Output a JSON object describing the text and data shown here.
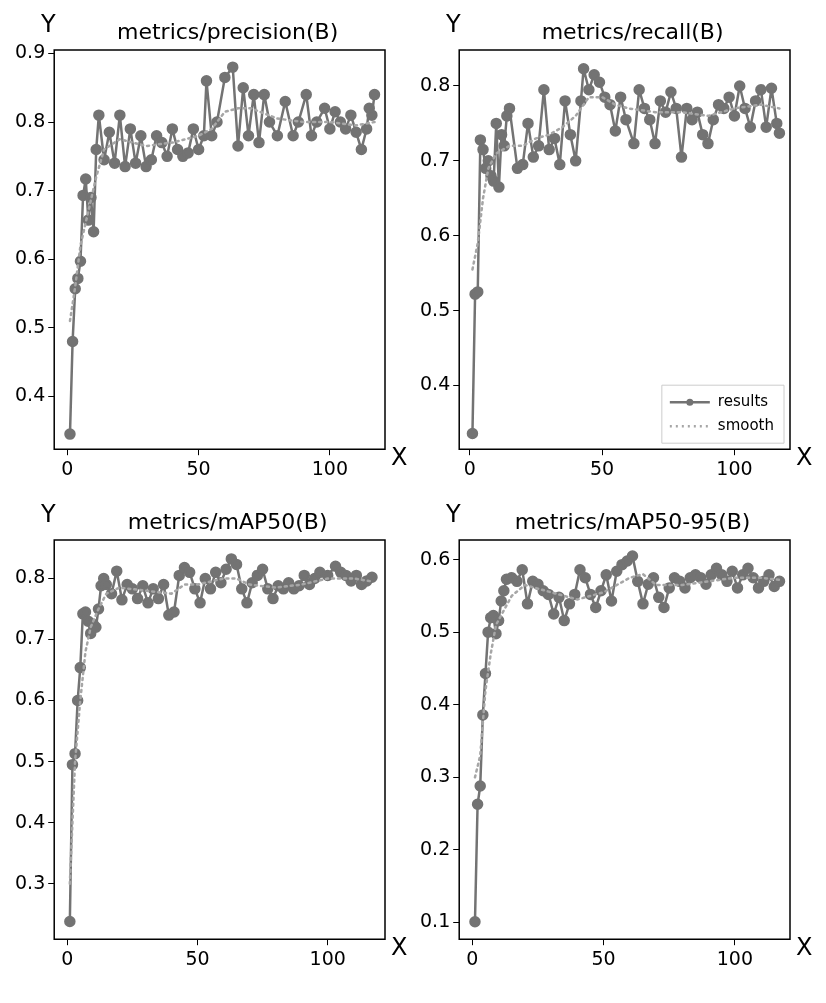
{
  "chart_data": [
    {
      "type": "line",
      "title": "metrics/precision(B)",
      "xlabel": "X",
      "ylabel": "Y",
      "xlim": [
        -5,
        121
      ],
      "ylim": [
        0.323,
        0.905
      ],
      "xticks": [
        0,
        50,
        100
      ],
      "yticks": [
        0.4,
        0.5,
        0.6,
        0.7,
        0.8,
        0.9
      ],
      "grid": false,
      "legend": false,
      "series": [
        {
          "color": "#737373",
          "marker": "circle",
          "line_style": "solid",
          "x": [
            1,
            2,
            3,
            4,
            5,
            6,
            7,
            8,
            9,
            10,
            11,
            12,
            14,
            16,
            18,
            20,
            22,
            24,
            26,
            28,
            30,
            32,
            34,
            36,
            38,
            40,
            42,
            44,
            46,
            48,
            50,
            52,
            53,
            55,
            57,
            60,
            63,
            65,
            67,
            69,
            71,
            73,
            75,
            77,
            80,
            83,
            86,
            88,
            91,
            93,
            95,
            98,
            100,
            102,
            104,
            106,
            108,
            110,
            112,
            114,
            115,
            116,
            117
          ],
          "values": [
            0.345,
            0.48,
            0.557,
            0.572,
            0.597,
            0.693,
            0.717,
            0.657,
            0.69,
            0.64,
            0.76,
            0.81,
            0.745,
            0.785,
            0.74,
            0.81,
            0.735,
            0.79,
            0.74,
            0.78,
            0.735,
            0.745,
            0.78,
            0.77,
            0.75,
            0.79,
            0.76,
            0.75,
            0.755,
            0.79,
            0.76,
            0.78,
            0.86,
            0.78,
            0.8,
            0.865,
            0.88,
            0.765,
            0.85,
            0.78,
            0.84,
            0.77,
            0.84,
            0.8,
            0.78,
            0.83,
            0.78,
            0.8,
            0.84,
            0.78,
            0.8,
            0.82,
            0.79,
            0.815,
            0.8,
            0.79,
            0.81,
            0.785,
            0.76,
            0.79,
            0.82,
            0.81,
            0.84
          ]
        },
        {
          "color": "#a6a6a6",
          "marker": "none",
          "line_style": "dotted",
          "x": [
            1,
            3,
            5,
            8,
            11,
            14,
            20,
            30,
            40,
            50,
            55,
            60,
            65,
            70,
            80,
            90,
            100,
            110,
            117
          ],
          "values": [
            0.51,
            0.56,
            0.62,
            0.67,
            0.72,
            0.76,
            0.775,
            0.765,
            0.77,
            0.78,
            0.79,
            0.815,
            0.82,
            0.82,
            0.805,
            0.8,
            0.8,
            0.795,
            0.8
          ]
        }
      ]
    },
    {
      "type": "line",
      "title": "metrics/recall(B)",
      "xlabel": "X",
      "ylabel": "Y",
      "xlim": [
        -4,
        121
      ],
      "ylim": [
        0.315,
        0.848
      ],
      "xticks": [
        0,
        50,
        100
      ],
      "yticks": [
        0.4,
        0.5,
        0.6,
        0.7,
        0.8
      ],
      "grid": false,
      "legend": "bottom right",
      "series": [
        {
          "name": "results",
          "color": "#737373",
          "marker": "circle",
          "line_style": "solid",
          "x": [
            1,
            2,
            3,
            4,
            5,
            6,
            7,
            8,
            9,
            10,
            11,
            12,
            13,
            14,
            15,
            18,
            20,
            22,
            24,
            26,
            28,
            30,
            32,
            34,
            36,
            38,
            40,
            42,
            43,
            45,
            47,
            49,
            51,
            53,
            55,
            57,
            59,
            62,
            64,
            66,
            68,
            70,
            72,
            74,
            76,
            78,
            80,
            82,
            84,
            86,
            88,
            90,
            92,
            94,
            96,
            98,
            100,
            102,
            104,
            106,
            108,
            110,
            112,
            114,
            116,
            117
          ],
          "values": [
            0.336,
            0.522,
            0.525,
            0.728,
            0.715,
            0.69,
            0.7,
            0.68,
            0.673,
            0.75,
            0.665,
            0.735,
            0.72,
            0.76,
            0.77,
            0.69,
            0.695,
            0.75,
            0.705,
            0.72,
            0.795,
            0.715,
            0.73,
            0.695,
            0.78,
            0.735,
            0.7,
            0.78,
            0.823,
            0.795,
            0.815,
            0.805,
            0.785,
            0.775,
            0.74,
            0.785,
            0.755,
            0.723,
            0.795,
            0.77,
            0.755,
            0.723,
            0.78,
            0.765,
            0.792,
            0.77,
            0.705,
            0.77,
            0.755,
            0.765,
            0.735,
            0.723,
            0.755,
            0.775,
            0.77,
            0.785,
            0.76,
            0.8,
            0.77,
            0.745,
            0.78,
            0.795,
            0.745,
            0.797,
            0.75,
            0.737
          ]
        },
        {
          "name": "smooth",
          "color": "#a6a6a6",
          "marker": "none",
          "line_style": "dotted",
          "x": [
            1,
            3,
            5,
            7,
            10,
            15,
            20,
            25,
            30,
            35,
            40,
            45,
            50,
            55,
            60,
            70,
            80,
            90,
            100,
            110,
            117
          ],
          "values": [
            0.555,
            0.59,
            0.65,
            0.69,
            0.71,
            0.72,
            0.72,
            0.73,
            0.735,
            0.745,
            0.76,
            0.785,
            0.785,
            0.775,
            0.77,
            0.765,
            0.765,
            0.76,
            0.77,
            0.775,
            0.77
          ]
        }
      ]
    },
    {
      "type": "line",
      "title": "metrics/mAP50(B)",
      "xlabel": "X",
      "ylabel": "Y",
      "xlim": [
        -5,
        122
      ],
      "ylim": [
        0.209,
        0.863
      ],
      "xticks": [
        0,
        50,
        100
      ],
      "yticks": [
        0.3,
        0.4,
        0.5,
        0.6,
        0.7,
        0.8
      ],
      "grid": false,
      "legend": false,
      "series": [
        {
          "color": "#737373",
          "marker": "circle",
          "line_style": "solid",
          "x": [
            1,
            2,
            3,
            4,
            5,
            6,
            7,
            8,
            9,
            10,
            11,
            12,
            13,
            14,
            15,
            17,
            19,
            21,
            23,
            25,
            27,
            29,
            31,
            33,
            35,
            37,
            39,
            41,
            43,
            45,
            47,
            49,
            51,
            53,
            55,
            57,
            59,
            61,
            63,
            65,
            67,
            69,
            71,
            73,
            75,
            77,
            79,
            81,
            83,
            85,
            87,
            89,
            91,
            93,
            95,
            97,
            100,
            103,
            105,
            107,
            109,
            111,
            113,
            115,
            117
          ],
          "values": [
            0.238,
            0.495,
            0.513,
            0.6,
            0.654,
            0.742,
            0.745,
            0.73,
            0.71,
            0.725,
            0.72,
            0.75,
            0.788,
            0.8,
            0.79,
            0.775,
            0.812,
            0.765,
            0.79,
            0.783,
            0.767,
            0.788,
            0.76,
            0.783,
            0.767,
            0.79,
            0.74,
            0.745,
            0.805,
            0.818,
            0.81,
            0.783,
            0.76,
            0.8,
            0.783,
            0.81,
            0.793,
            0.815,
            0.832,
            0.823,
            0.783,
            0.76,
            0.793,
            0.805,
            0.815,
            0.783,
            0.767,
            0.788,
            0.783,
            0.793,
            0.783,
            0.788,
            0.805,
            0.79,
            0.8,
            0.81,
            0.805,
            0.82,
            0.81,
            0.805,
            0.796,
            0.805,
            0.79,
            0.796,
            0.802
          ]
        },
        {
          "color": "#a6a6a6",
          "marker": "none",
          "line_style": "dotted",
          "x": [
            1,
            3,
            5,
            7,
            9,
            12,
            15,
            20,
            30,
            40,
            45,
            50,
            60,
            65,
            70,
            80,
            90,
            100,
            110,
            117
          ],
          "values": [
            0.3,
            0.5,
            0.6,
            0.68,
            0.72,
            0.75,
            0.775,
            0.785,
            0.78,
            0.775,
            0.79,
            0.79,
            0.8,
            0.8,
            0.79,
            0.785,
            0.79,
            0.8,
            0.8,
            0.795
          ]
        }
      ]
    },
    {
      "type": "line",
      "title": "metrics/mAP50-95(B)",
      "xlabel": "X",
      "ylabel": "Y",
      "xlim": [
        -5,
        121
      ],
      "ylim": [
        0.077,
        0.627
      ],
      "xticks": [
        0,
        50,
        100
      ],
      "yticks": [
        0.1,
        0.2,
        0.3,
        0.4,
        0.5,
        0.6
      ],
      "grid": false,
      "legend": false,
      "series": [
        {
          "color": "#737373",
          "marker": "circle",
          "line_style": "solid",
          "x": [
            1,
            2,
            3,
            4,
            5,
            6,
            7,
            8,
            9,
            10,
            11,
            12,
            13,
            15,
            17,
            19,
            21,
            23,
            25,
            27,
            29,
            31,
            33,
            35,
            37,
            39,
            41,
            43,
            45,
            47,
            49,
            51,
            53,
            55,
            57,
            59,
            61,
            63,
            65,
            67,
            69,
            71,
            73,
            75,
            77,
            79,
            81,
            83,
            85,
            87,
            89,
            91,
            93,
            95,
            97,
            99,
            101,
            103,
            105,
            107,
            109,
            111,
            113,
            115,
            117
          ],
          "values": [
            0.101,
            0.263,
            0.288,
            0.386,
            0.443,
            0.5,
            0.52,
            0.523,
            0.498,
            0.516,
            0.543,
            0.557,
            0.573,
            0.575,
            0.57,
            0.586,
            0.539,
            0.57,
            0.566,
            0.557,
            0.552,
            0.525,
            0.548,
            0.516,
            0.539,
            0.552,
            0.586,
            0.575,
            0.552,
            0.534,
            0.557,
            0.579,
            0.543,
            0.584,
            0.593,
            0.598,
            0.605,
            0.57,
            0.539,
            0.566,
            0.575,
            0.548,
            0.534,
            0.561,
            0.575,
            0.57,
            0.561,
            0.575,
            0.579,
            0.575,
            0.566,
            0.579,
            0.588,
            0.579,
            0.57,
            0.584,
            0.561,
            0.579,
            0.588,
            0.575,
            0.561,
            0.57,
            0.579,
            0.563,
            0.57
          ]
        },
        {
          "color": "#a6a6a6",
          "marker": "none",
          "line_style": "dotted",
          "x": [
            1,
            3,
            5,
            7,
            9,
            12,
            15,
            20,
            30,
            40,
            50,
            60,
            65,
            70,
            80,
            90,
            100,
            110,
            117
          ],
          "values": [
            0.3,
            0.33,
            0.42,
            0.47,
            0.51,
            0.53,
            0.55,
            0.565,
            0.555,
            0.545,
            0.555,
            0.575,
            0.58,
            0.565,
            0.565,
            0.57,
            0.575,
            0.575,
            0.572
          ]
        }
      ]
    }
  ]
}
